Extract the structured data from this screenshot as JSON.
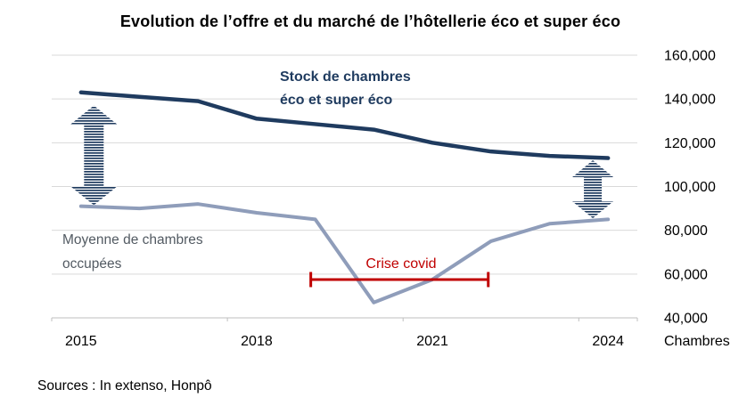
{
  "title": "Evolution de l’offre et du marché de l’hôtellerie éco et super éco",
  "source": "Sources : In extenso, Honpô",
  "chart_data": {
    "type": "line",
    "x": [
      2015,
      2016,
      2017,
      2018,
      2019,
      2020,
      2021,
      2022,
      2023,
      2024
    ],
    "x_tick_labels": [
      "2015",
      "2018",
      "2021",
      "2024"
    ],
    "series": [
      {
        "name": "Stock de chambres éco et super éco",
        "color": "#1f3b5f",
        "values": [
          143000,
          141000,
          139000,
          131000,
          128500,
          126000,
          120000,
          116000,
          114000,
          113000
        ]
      },
      {
        "name": "Moyenne de chambres occupées",
        "color": "#8f9dba",
        "values": [
          91000,
          90000,
          92000,
          88000,
          85000,
          47000,
          57500,
          75000,
          83000,
          85000
        ]
      }
    ],
    "ylim": [
      40000,
      160000
    ],
    "y_ticks": [
      40000,
      60000,
      80000,
      100000,
      120000,
      140000,
      160000
    ],
    "y_tick_labels": [
      "40,000",
      "60,000",
      "80,000",
      "100,000",
      "120,000",
      "140,000",
      "160,000"
    ],
    "y_axis_unit": "Chambres",
    "grid": "horizontal",
    "legend_position": "none",
    "annotations": {
      "stock_label": {
        "line1": "Stock de chambres",
        "line2": "éco et super éco"
      },
      "occupied_label": {
        "line1": "Moyenne de chambres",
        "line2": "occupées"
      },
      "covid": {
        "label": "Crise covid",
        "x_start": 2019,
        "x_end": 2022,
        "y_value": 57500,
        "color": "#c00000"
      },
      "gap_arrows": [
        {
          "position": "left",
          "x_year": 2015.22,
          "value_top": 137000,
          "value_bottom": 91500
        },
        {
          "position": "right",
          "x_year": 2023.74,
          "value_top": 112000,
          "value_bottom": 85500
        }
      ]
    }
  }
}
